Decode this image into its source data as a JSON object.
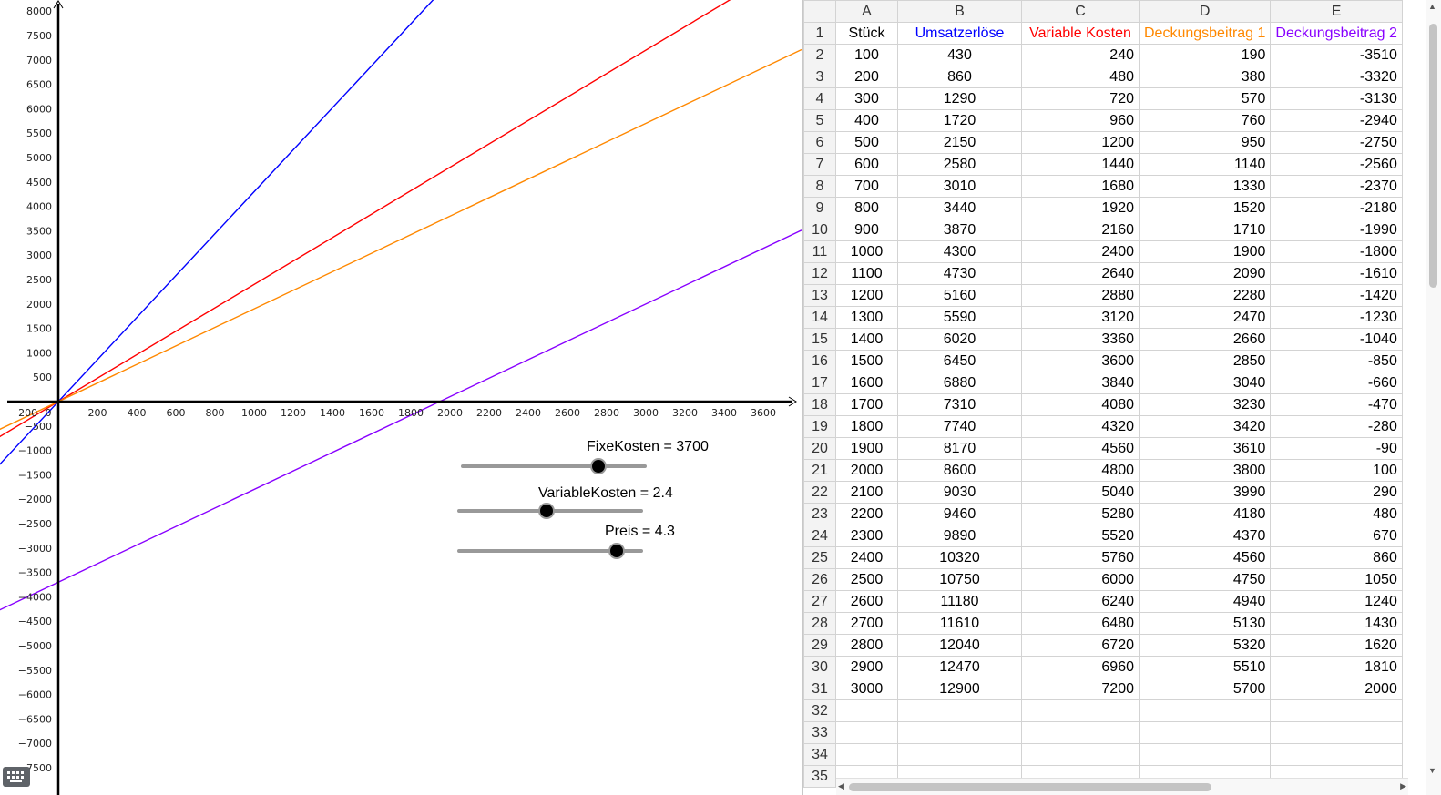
{
  "graph": {
    "x_ticks": [
      -200,
      0,
      200,
      400,
      600,
      800,
      1000,
      1200,
      1400,
      1600,
      1800,
      2000,
      2200,
      2400,
      2600,
      2800,
      3000,
      3200,
      3400,
      3600
    ],
    "y_ticks": [
      8000,
      7500,
      7000,
      6500,
      6000,
      5500,
      5000,
      4500,
      4000,
      3500,
      3000,
      2500,
      2000,
      1500,
      1000,
      500,
      -500,
      -1000,
      -1500,
      -2000,
      -2500,
      -3000,
      -3500,
      -4000,
      -4500,
      -5000,
      -5500,
      -6000,
      -6500,
      -7000,
      -7500
    ],
    "lines": [
      {
        "slope": 4.3,
        "intercept": 0,
        "color": "#0000ff"
      },
      {
        "slope": 2.4,
        "intercept": 0,
        "color": "#ff0000"
      },
      {
        "slope": 1.9,
        "intercept": 0,
        "color": "#ff8800"
      },
      {
        "slope": 1.9,
        "intercept": -3700,
        "color": "#8800ff"
      }
    ]
  },
  "sliders": [
    {
      "label": "FixeKosten = 3700",
      "value": 3700,
      "fraction": 0.74
    },
    {
      "label": "VariableKosten = 2.4",
      "value": 2.4,
      "fraction": 0.48
    },
    {
      "label": "Preis = 4.3",
      "value": 4.3,
      "fraction": 0.86
    }
  ],
  "spreadsheet": {
    "columns": [
      "A",
      "B",
      "C",
      "D",
      "E"
    ],
    "header": [
      {
        "text": "Stück",
        "color": "#000000"
      },
      {
        "text": "Umsatzerlöse",
        "color": "#0000ff"
      },
      {
        "text": "Variable Kosten",
        "color": "#ff0000"
      },
      {
        "text": "Deckungsbeitrag 1",
        "color": "#ff8800"
      },
      {
        "text": "Deckungsbeitrag 2",
        "color": "#8800ff"
      }
    ],
    "rows": [
      [
        "100",
        "430",
        "240",
        "190",
        "-3510"
      ],
      [
        "200",
        "860",
        "480",
        "380",
        "-3320"
      ],
      [
        "300",
        "1290",
        "720",
        "570",
        "-3130"
      ],
      [
        "400",
        "1720",
        "960",
        "760",
        "-2940"
      ],
      [
        "500",
        "2150",
        "1200",
        "950",
        "-2750"
      ],
      [
        "600",
        "2580",
        "1440",
        "1140",
        "-2560"
      ],
      [
        "700",
        "3010",
        "1680",
        "1330",
        "-2370"
      ],
      [
        "800",
        "3440",
        "1920",
        "1520",
        "-2180"
      ],
      [
        "900",
        "3870",
        "2160",
        "1710",
        "-1990"
      ],
      [
        "1000",
        "4300",
        "2400",
        "1900",
        "-1800"
      ],
      [
        "1100",
        "4730",
        "2640",
        "2090",
        "-1610"
      ],
      [
        "1200",
        "5160",
        "2880",
        "2280",
        "-1420"
      ],
      [
        "1300",
        "5590",
        "3120",
        "2470",
        "-1230"
      ],
      [
        "1400",
        "6020",
        "3360",
        "2660",
        "-1040"
      ],
      [
        "1500",
        "6450",
        "3600",
        "2850",
        "-850"
      ],
      [
        "1600",
        "6880",
        "3840",
        "3040",
        "-660"
      ],
      [
        "1700",
        "7310",
        "4080",
        "3230",
        "-470"
      ],
      [
        "1800",
        "7740",
        "4320",
        "3420",
        "-280"
      ],
      [
        "1900",
        "8170",
        "4560",
        "3610",
        "-90"
      ],
      [
        "2000",
        "8600",
        "4800",
        "3800",
        "100"
      ],
      [
        "2100",
        "9030",
        "5040",
        "3990",
        "290"
      ],
      [
        "2200",
        "9460",
        "5280",
        "4180",
        "480"
      ],
      [
        "2300",
        "9890",
        "5520",
        "4370",
        "670"
      ],
      [
        "2400",
        "10320",
        "5760",
        "4560",
        "860"
      ],
      [
        "2500",
        "10750",
        "6000",
        "4750",
        "1050"
      ],
      [
        "2600",
        "11180",
        "6240",
        "4940",
        "1240"
      ],
      [
        "2700",
        "11610",
        "6480",
        "5130",
        "1430"
      ],
      [
        "2800",
        "12040",
        "6720",
        "5320",
        "1620"
      ],
      [
        "2900",
        "12470",
        "6960",
        "5510",
        "1810"
      ],
      [
        "3000",
        "12900",
        "7200",
        "5700",
        "2000"
      ]
    ],
    "empty_row_numbers": [
      "32",
      "33",
      "34",
      "35"
    ]
  },
  "icons": {
    "keyboard": "keyboard-icon"
  }
}
